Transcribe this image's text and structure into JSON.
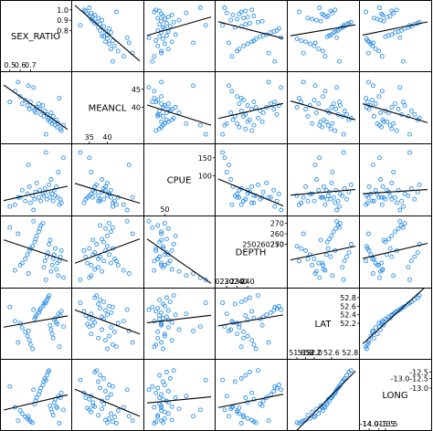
{
  "chart_data": {
    "type": "scatter",
    "variables": [
      {
        "name": "SEX_RATIO",
        "range": [
          0.44,
          1.06
        ]
      },
      {
        "name": "MEANCL",
        "range": [
          31,
          49
        ]
      },
      {
        "name": "CPUE",
        "range": [
          0,
          180
        ]
      },
      {
        "name": "DEPTH",
        "range": [
          212,
          274
        ]
      },
      {
        "name": "LAT",
        "range": [
          51.45,
          52.95
        ]
      },
      {
        "name": "LONG",
        "range": [
          -14.2,
          -12.2
        ]
      }
    ],
    "diagonal_ticks": [
      {
        "labels": [
          {
            "v": 0.8,
            "t": "0.8"
          },
          {
            "v": 0.9,
            "t": "0.9"
          },
          {
            "v": 1.0,
            "t": "1.0"
          },
          {
            "v": 0.5,
            "t": "0.5"
          },
          {
            "v": 0.6,
            "t": "0.6"
          },
          {
            "v": 0.7,
            "t": "0.7"
          }
        ]
      },
      {
        "labels": [
          {
            "v": 45,
            "t": "45"
          },
          {
            "v": 40,
            "t": "40"
          },
          {
            "v": 35,
            "t": "35"
          },
          {
            "v": 40,
            "t": "40"
          }
        ]
      },
      {
        "labels": [
          {
            "v": 150,
            "t": "150"
          },
          {
            "v": 100,
            "t": "100"
          },
          {
            "v": 50,
            "t": "50"
          }
        ]
      },
      {
        "labels": [
          {
            "v": 270,
            "t": "270"
          },
          {
            "v": 260,
            "t": "260"
          },
          {
            "v": 250,
            "t": "250"
          },
          {
            "v": 250,
            "t": "250260270"
          },
          {
            "v": 240,
            "t": "240"
          },
          {
            "v": 230,
            "t": "230"
          },
          {
            "v": 220,
            "t": "220"
          },
          {
            "v": 220,
            "t": "220230240"
          }
        ]
      },
      {
        "labels": [
          {
            "v": 52.8,
            "t": "52.8"
          },
          {
            "v": 52.6,
            "t": "52.6"
          },
          {
            "v": 52.4,
            "t": "52.4"
          },
          {
            "v": 52.2,
            "t": "52.2"
          },
          {
            "v": 52.4,
            "t": "52.2 52.6 52.8"
          },
          {
            "v": 52.0,
            "t": "52.0"
          },
          {
            "v": 51.8,
            "t": "51.8"
          },
          {
            "v": 51.6,
            "t": "51.6"
          }
        ]
      },
      {
        "labels": [
          {
            "v": -12.5,
            "t": "-12.5"
          },
          {
            "v": -12.7,
            "t": "-13.0-12.5"
          },
          {
            "v": -13.0,
            "t": "-13.0"
          },
          {
            "v": -13.5,
            "t": "-13.5"
          },
          {
            "v": -13.7,
            "t": "-14.0-13.5"
          },
          {
            "v": -14.0,
            "t": "-14.0"
          }
        ]
      }
    ],
    "observations": [
      [
        0.55,
        44.5,
        20,
        225,
        52.25,
        -13.6
      ],
      [
        0.6,
        43.0,
        40,
        230,
        52.2,
        -13.7
      ],
      [
        0.62,
        41.0,
        60,
        232,
        52.1,
        -13.8
      ],
      [
        0.65,
        42.0,
        30,
        236,
        52.0,
        -13.9
      ],
      [
        0.67,
        40.5,
        50,
        240,
        51.9,
        -13.95
      ],
      [
        0.69,
        39.5,
        70,
        244,
        51.8,
        -14.0
      ],
      [
        0.7,
        41.5,
        25,
        246,
        51.7,
        -14.05
      ],
      [
        0.72,
        40.0,
        45,
        248,
        51.6,
        -14.08
      ],
      [
        0.74,
        39.0,
        35,
        252,
        52.3,
        -13.5
      ],
      [
        0.75,
        38.5,
        55,
        255,
        52.35,
        -13.4
      ],
      [
        0.76,
        40.0,
        80,
        258,
        52.4,
        -13.3
      ],
      [
        0.78,
        41.0,
        40,
        262,
        52.45,
        -13.2
      ],
      [
        0.79,
        39.5,
        60,
        265,
        52.5,
        -13.1
      ],
      [
        0.8,
        38.0,
        30,
        268,
        52.55,
        -13.0
      ],
      [
        0.82,
        40.5,
        50,
        270,
        52.6,
        -12.9
      ],
      [
        0.83,
        37.5,
        45,
        228,
        52.65,
        -12.8
      ],
      [
        0.84,
        39.0,
        65,
        234,
        52.7,
        -12.7
      ],
      [
        0.86,
        38.0,
        35,
        238,
        52.75,
        -12.6
      ],
      [
        0.87,
        36.5,
        55,
        242,
        52.8,
        -12.5
      ],
      [
        0.88,
        37.0,
        75,
        250,
        52.85,
        -12.45
      ],
      [
        0.89,
        36.0,
        40,
        254,
        52.15,
        -13.55
      ],
      [
        0.9,
        38.5,
        90,
        224,
        52.05,
        -13.65
      ],
      [
        0.91,
        35.5,
        50,
        230,
        51.95,
        -13.75
      ],
      [
        0.92,
        37.5,
        30,
        236,
        51.85,
        -13.85
      ],
      [
        0.93,
        36.0,
        60,
        240,
        52.28,
        -13.45
      ],
      [
        0.94,
        35.0,
        45,
        246,
        52.32,
        -13.35
      ],
      [
        0.95,
        36.5,
        70,
        226,
        52.22,
        -13.58
      ],
      [
        0.96,
        34.5,
        40,
        232,
        52.18,
        -13.62
      ],
      [
        0.97,
        35.5,
        110,
        220,
        52.42,
        -13.25
      ],
      [
        0.99,
        34.0,
        35,
        238,
        52.38,
        -13.3
      ],
      [
        1.0,
        33.5,
        25,
        244,
        52.48,
        -13.15
      ],
      [
        1.02,
        35.0,
        150,
        218,
        52.12,
        -13.68
      ],
      [
        0.68,
        46.0,
        130,
        222,
        52.02,
        -13.88
      ],
      [
        0.58,
        47.0,
        40,
        260,
        51.75,
        -14.02
      ],
      [
        0.5,
        41.5,
        15,
        266,
        52.58,
        -12.95
      ],
      [
        0.85,
        32.5,
        165,
        216,
        52.68,
        -12.75
      ],
      [
        0.73,
        45.5,
        5,
        272,
        52.52,
        -13.05
      ],
      [
        0.98,
        42.5,
        20,
        234,
        51.65,
        -14.1
      ]
    ]
  }
}
